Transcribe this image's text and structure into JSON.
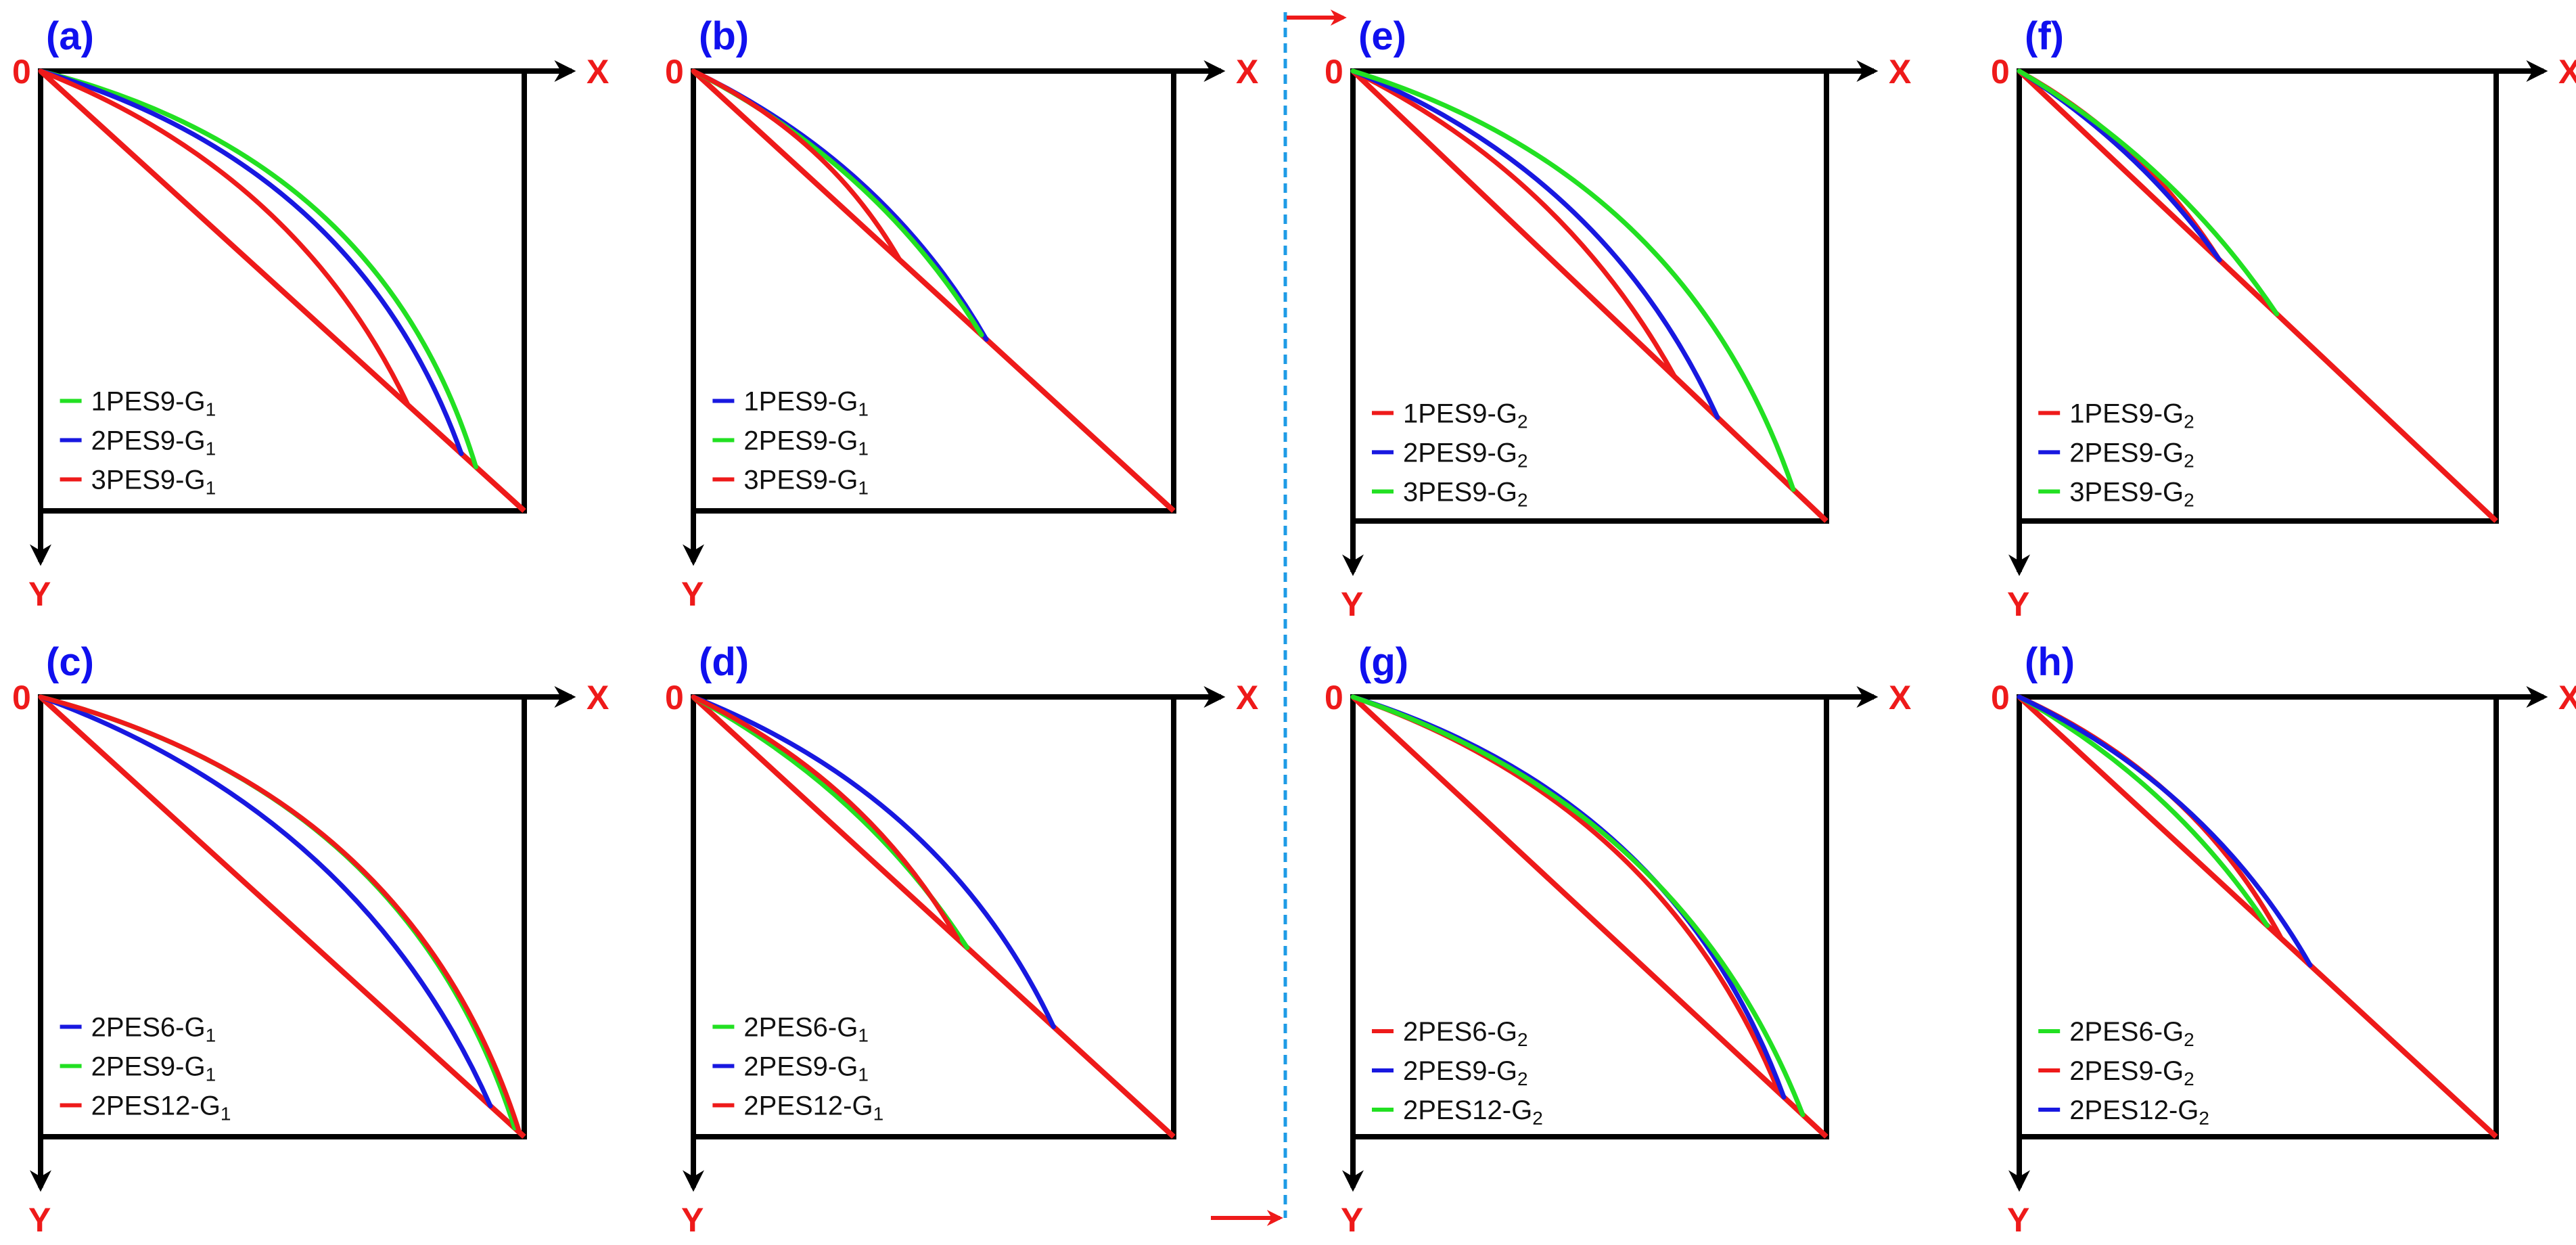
{
  "colors": {
    "panel_label": "#1010ee",
    "axis_label": "#ee1a1a",
    "axis": "#000000",
    "red": "#ee1a1a",
    "green": "#22e022",
    "blue": "#1818e0",
    "divider": "#1e9be6"
  },
  "axis_labels": {
    "origin": "0",
    "x": "X",
    "y": "Y"
  },
  "panels": [
    {
      "id": "a",
      "label": "(a)",
      "curves": [
        {
          "color": "green",
          "end": 0.9,
          "bulge": 0.4
        },
        {
          "color": "blue",
          "end": 0.87,
          "bulge": 0.36
        },
        {
          "color": "red",
          "end": 0.76,
          "bulge": 0.28
        }
      ],
      "legend": [
        {
          "color": "green",
          "label": "1PES9-G",
          "sub": "1"
        },
        {
          "color": "blue",
          "label": "2PES9-G",
          "sub": "1"
        },
        {
          "color": "red",
          "label": "3PES9-G",
          "sub": "1"
        }
      ]
    },
    {
      "id": "b",
      "label": "(b)",
      "curves": [
        {
          "color": "blue",
          "end": 0.61,
          "bulge": 0.22
        },
        {
          "color": "green",
          "end": 0.6,
          "bulge": 0.2
        },
        {
          "color": "red",
          "end": 0.43,
          "bulge": 0.22
        }
      ],
      "legend": [
        {
          "color": "blue",
          "label": "1PES9-G",
          "sub": "1"
        },
        {
          "color": "green",
          "label": "2PES9-G",
          "sub": "1"
        },
        {
          "color": "red",
          "label": "3PES9-G",
          "sub": "1"
        }
      ]
    },
    {
      "id": "c",
      "label": "(c)",
      "curves": [
        {
          "color": "blue",
          "end": 0.93,
          "bulge": 0.3
        },
        {
          "color": "green",
          "end": 0.98,
          "bulge": 0.39
        },
        {
          "color": "red",
          "end": 0.99,
          "bulge": 0.39
        }
      ],
      "legend": [
        {
          "color": "blue",
          "label": "2PES6-G",
          "sub": "1"
        },
        {
          "color": "green",
          "label": "2PES9-G",
          "sub": "1"
        },
        {
          "color": "red",
          "label": "2PES12-G",
          "sub": "1"
        }
      ]
    },
    {
      "id": "d",
      "label": "(d)",
      "curves": [
        {
          "color": "green",
          "end": 0.57,
          "bulge": 0.18
        },
        {
          "color": "blue",
          "end": 0.75,
          "bulge": 0.28
        },
        {
          "color": "red",
          "end": 0.55,
          "bulge": 0.22
        }
      ],
      "legend": [
        {
          "color": "green",
          "label": "2PES6-G",
          "sub": "1"
        },
        {
          "color": "blue",
          "label": "2PES9-G",
          "sub": "1"
        },
        {
          "color": "red",
          "label": "2PES12-G",
          "sub": "1"
        }
      ]
    },
    {
      "id": "e",
      "label": "(e)",
      "curves": [
        {
          "color": "red",
          "end": 0.68,
          "bulge": 0.22
        },
        {
          "color": "blue",
          "end": 0.77,
          "bulge": 0.28
        },
        {
          "color": "green",
          "end": 0.93,
          "bulge": 0.36
        }
      ],
      "legend": [
        {
          "color": "red",
          "label": "1PES9-G",
          "sub": "2"
        },
        {
          "color": "blue",
          "label": "2PES9-G",
          "sub": "2"
        },
        {
          "color": "green",
          "label": "3PES9-G",
          "sub": "2"
        }
      ]
    },
    {
      "id": "f",
      "label": "(f)",
      "curves": [
        {
          "color": "red",
          "end": 0.42,
          "bulge": 0.18
        },
        {
          "color": "blue",
          "end": 0.42,
          "bulge": 0.14
        },
        {
          "color": "green",
          "end": 0.54,
          "bulge": 0.16
        }
      ],
      "legend": [
        {
          "color": "red",
          "label": "1PES9-G",
          "sub": "2"
        },
        {
          "color": "blue",
          "label": "2PES9-G",
          "sub": "2"
        },
        {
          "color": "green",
          "label": "3PES9-G",
          "sub": "2"
        }
      ]
    },
    {
      "id": "g",
      "label": "(g)",
      "curves": [
        {
          "color": "red",
          "end": 0.9,
          "bulge": 0.32
        },
        {
          "color": "blue",
          "end": 0.91,
          "bulge": 0.35
        },
        {
          "color": "green",
          "end": 0.95,
          "bulge": 0.33
        }
      ],
      "legend": [
        {
          "color": "red",
          "label": "2PES6-G",
          "sub": "2"
        },
        {
          "color": "blue",
          "label": "2PES9-G",
          "sub": "2"
        },
        {
          "color": "green",
          "label": "2PES12-G",
          "sub": "2"
        }
      ]
    },
    {
      "id": "h",
      "label": "(h)",
      "curves": [
        {
          "color": "green",
          "end": 0.52,
          "bulge": 0.17
        },
        {
          "color": "red",
          "end": 0.55,
          "bulge": 0.24
        },
        {
          "color": "blue",
          "end": 0.61,
          "bulge": 0.22
        }
      ],
      "legend": [
        {
          "color": "green",
          "label": "2PES6-G",
          "sub": "2"
        },
        {
          "color": "red",
          "label": "2PES9-G",
          "sub": "2"
        },
        {
          "color": "blue",
          "label": "2PES12-G",
          "sub": "2"
        }
      ]
    }
  ]
}
